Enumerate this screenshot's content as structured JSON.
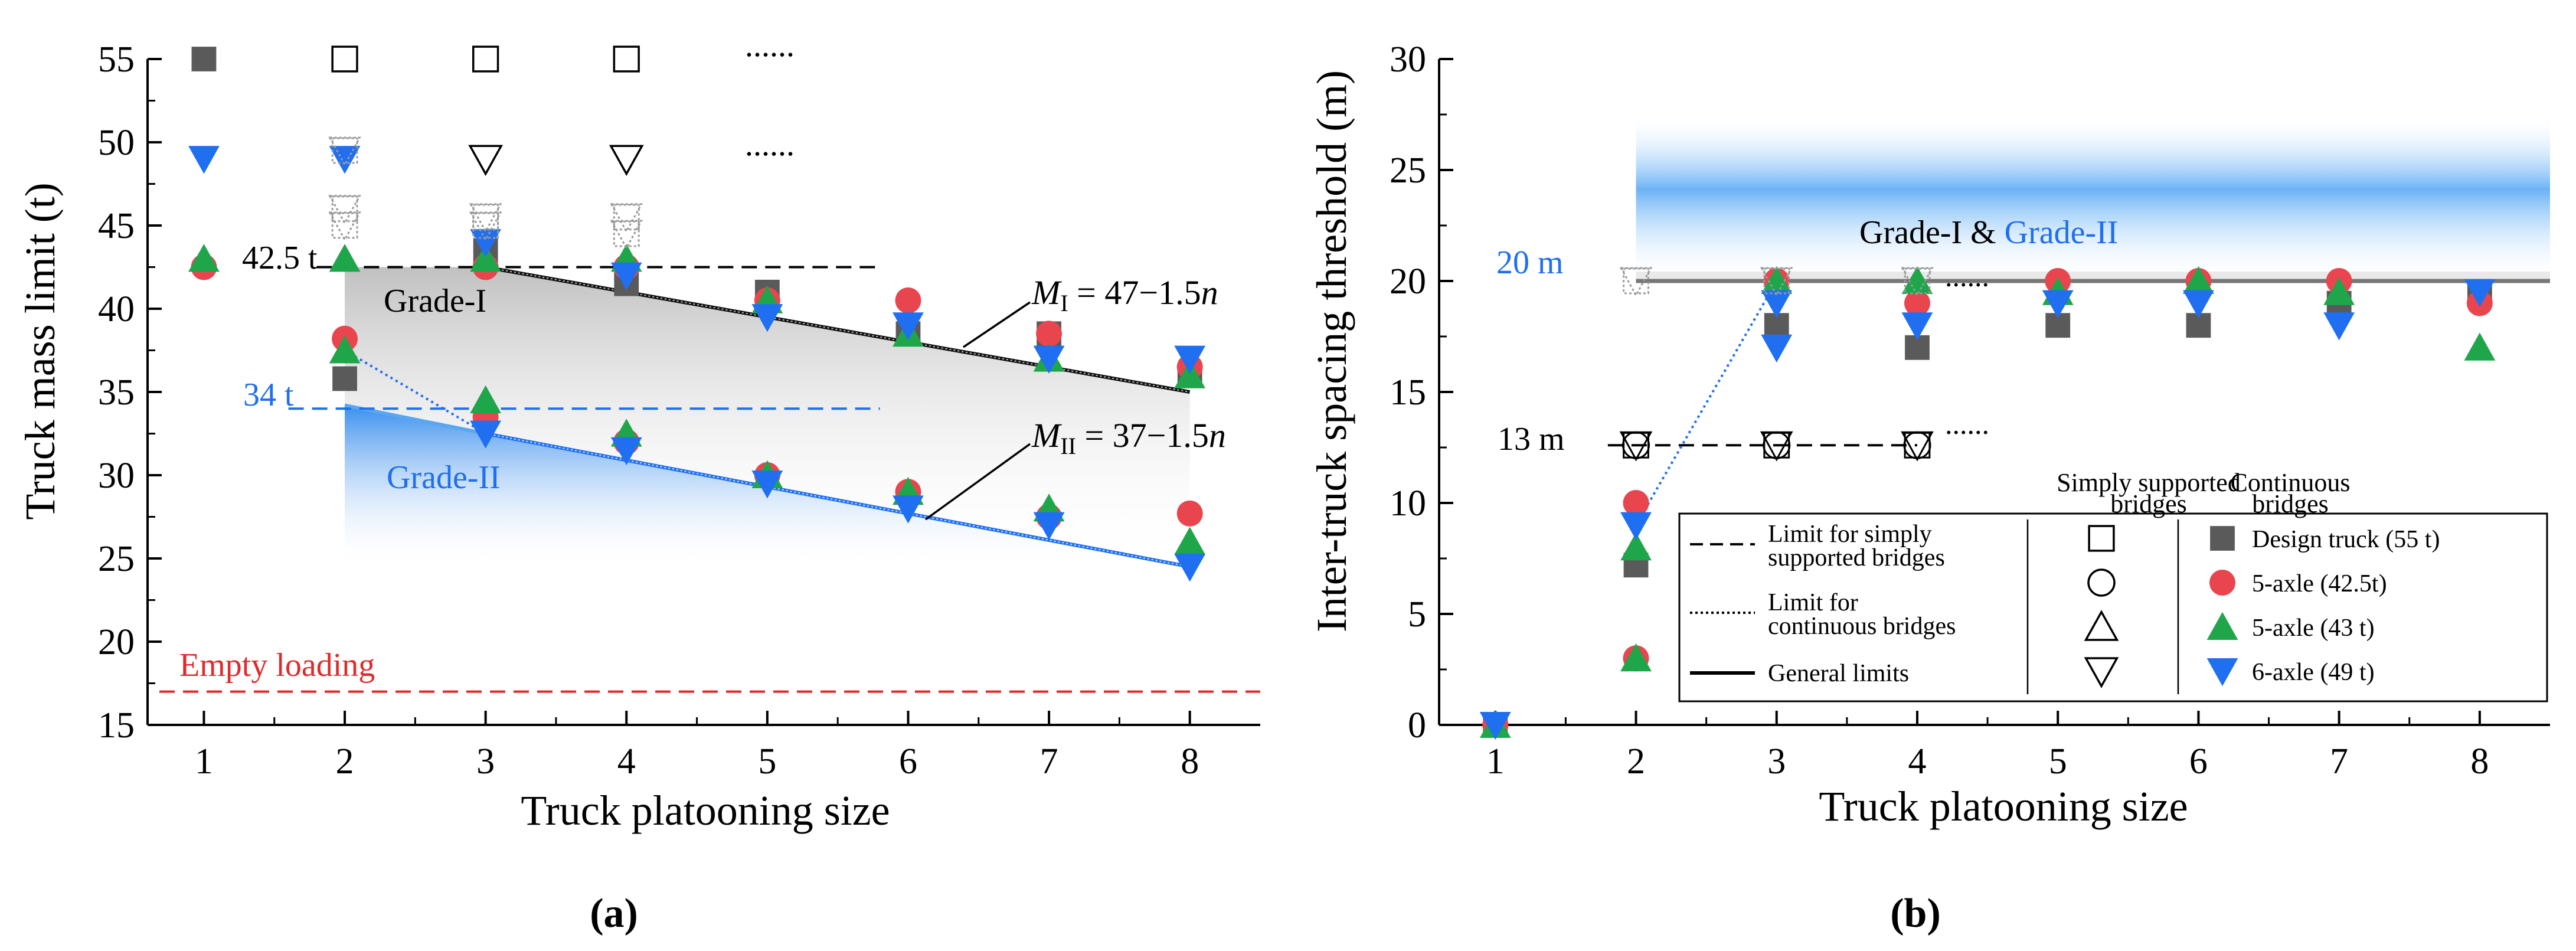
{
  "chart_data": [
    {
      "panel": "(a)",
      "type": "scatter",
      "xlabel": "Truck platooning size",
      "ylabel": "Truck mass limit (t)",
      "xlim": [
        0.6,
        8.5
      ],
      "ylim": [
        15,
        55
      ],
      "xticks": [
        "1",
        "2",
        "3",
        "4",
        "5",
        "6",
        "7",
        "8"
      ],
      "yticks": [
        "15",
        "20",
        "25",
        "30",
        "35",
        "40",
        "45",
        "50",
        "55"
      ],
      "annotations": {
        "grade1_value": "42.5 t",
        "grade2_value": "34 t",
        "grade1_label": "Grade-I",
        "grade2_label": "Grade-II",
        "empty_label": "Empty loading",
        "formula1_M": "M",
        "formula1_sub": "I",
        "formula1_rhs": " = 47−1.5",
        "formula1_n": "n",
        "formula2_M": "M",
        "formula2_sub": "II",
        "formula2_rhs": " = 37−1.5",
        "formula2_n": "n",
        "ellipsis": "......"
      },
      "lines": {
        "grade1_limit": {
          "y": 42.5,
          "x": [
            1.8,
            5.8
          ]
        },
        "grade2_limit": {
          "y": 34,
          "x": [
            1.6,
            5.8
          ]
        },
        "empty_loading": {
          "y": 17
        },
        "M1": {
          "x": [
            3,
            8
          ],
          "y": [
            42.5,
            35
          ]
        },
        "M2": {
          "x": [
            3,
            8
          ],
          "y": [
            32.5,
            24.5
          ]
        },
        "grade2_connector": {
          "x": [
            2,
            3
          ],
          "y": [
            37.5,
            32.5
          ]
        }
      },
      "series": [
        {
          "name": "Design truck (55 t)",
          "marker": "square-filled",
          "color": "#5a5a5a",
          "points": [
            [
              1,
              55
            ],
            [
              2,
              35.8
            ],
            [
              3,
              43.5
            ],
            [
              4,
              41.5
            ],
            [
              5,
              41
            ],
            [
              6,
              38.5
            ],
            [
              7,
              38.5
            ],
            [
              8,
              36
            ]
          ]
        },
        {
          "name": "5-axle (42.5t)",
          "marker": "circle-filled",
          "color": "#e8454f",
          "points": [
            [
              1,
              42.5
            ],
            [
              2,
              38.2
            ],
            [
              3,
              42.5
            ],
            [
              4,
              42.5
            ],
            [
              5,
              40.5
            ],
            [
              6,
              40.5
            ],
            [
              7,
              38.5
            ],
            [
              8,
              36.5
            ],
            [
              3,
              33.5
            ],
            [
              4,
              32
            ],
            [
              5,
              30
            ],
            [
              6,
              29
            ],
            [
              7,
              27.5
            ],
            [
              8,
              27.7
            ]
          ]
        },
        {
          "name": "5-axle (43 t)",
          "marker": "triangle-filled",
          "color": "#1fa64a",
          "points": [
            [
              1,
              43
            ],
            [
              2,
              43
            ],
            [
              3,
              43
            ],
            [
              4,
              43
            ],
            [
              5,
              40.5
            ],
            [
              6,
              38.5
            ],
            [
              7,
              37
            ],
            [
              8,
              36
            ],
            [
              2,
              37.5
            ],
            [
              3,
              34.5
            ],
            [
              4,
              32.5
            ],
            [
              5,
              30
            ],
            [
              6,
              29
            ],
            [
              7,
              28
            ],
            [
              8,
              26
            ]
          ]
        },
        {
          "name": "6-axle (49 t)",
          "marker": "triangle-down-filled",
          "color": "#1f6ff0",
          "points": [
            [
              1,
              49
            ],
            [
              2,
              49
            ],
            [
              3,
              44
            ],
            [
              4,
              42
            ],
            [
              5,
              39.5
            ],
            [
              6,
              39
            ],
            [
              7,
              37
            ],
            [
              8,
              37
            ],
            [
              3,
              32.5
            ],
            [
              4,
              31.5
            ],
            [
              5,
              29.5
            ],
            [
              6,
              28
            ],
            [
              7,
              27
            ],
            [
              8,
              24.5
            ]
          ]
        },
        {
          "name": "Simply supported (open square)",
          "marker": "square-open",
          "color": "#000000",
          "points": [
            [
              2,
              55
            ],
            [
              3,
              55
            ],
            [
              4,
              55
            ]
          ]
        },
        {
          "name": "Simply supported (open triangle-down)",
          "marker": "triangle-down-open",
          "color": "#000000",
          "points": [
            [
              3,
              49
            ],
            [
              4,
              49
            ]
          ]
        },
        {
          "name": "Continuous (dotted)",
          "marker": "dotted-faint",
          "color": "#9a9a9a",
          "points": [
            [
              2,
              49.5
            ],
            [
              2,
              46
            ],
            [
              2,
              45
            ],
            [
              3,
              45.5
            ],
            [
              3,
              45
            ],
            [
              4,
              45.5
            ],
            [
              4,
              44.5
            ]
          ]
        }
      ]
    },
    {
      "panel": "(b)",
      "type": "scatter",
      "xlabel": "Truck platooning size",
      "ylabel": "Inter-truck spacing threshold (m)",
      "xlim": [
        0.6,
        8.5
      ],
      "ylim": [
        0,
        30
      ],
      "xticks": [
        "1",
        "2",
        "3",
        "4",
        "5",
        "6",
        "7",
        "8"
      ],
      "yticks": [
        "0",
        "5",
        "10",
        "15",
        "20",
        "25",
        "30"
      ],
      "annotations": {
        "grade_label_1": "Grade-I",
        "grade_label_amp": " & ",
        "grade_label_2": "Grade-II",
        "limit_20": "20 m",
        "limit_13": "13 m",
        "ellipsis": "......"
      },
      "lines": {
        "general_limit": {
          "y": 20,
          "x": [
            2,
            8.5
          ]
        },
        "simply_limit": {
          "y": 12.6,
          "x": [
            1.8,
            4
          ]
        },
        "band": {
          "y": [
            20,
            27.5
          ],
          "x": [
            2,
            8.5
          ]
        },
        "connector": {
          "x": [
            2,
            3
          ],
          "y": [
            9,
            20
          ]
        }
      },
      "series": [
        {
          "name": "Design truck (55 t)",
          "marker": "square-filled",
          "color": "#5a5a5a",
          "points": [
            [
              1,
              0
            ],
            [
              2,
              7.2
            ],
            [
              3,
              18
            ],
            [
              4,
              17
            ],
            [
              5,
              18
            ],
            [
              6,
              18
            ],
            [
              7,
              19
            ],
            [
              8,
              19.5
            ]
          ]
        },
        {
          "name": "5-axle (42.5t)",
          "marker": "circle-filled",
          "color": "#e8454f",
          "points": [
            [
              1,
              0
            ],
            [
              2,
              10
            ],
            [
              2,
              3
            ],
            [
              3,
              20
            ],
            [
              4,
              19
            ],
            [
              5,
              20
            ],
            [
              6,
              20
            ],
            [
              7,
              20
            ],
            [
              8,
              19
            ]
          ]
        },
        {
          "name": "5-axle (43 t)",
          "marker": "triangle-filled",
          "color": "#1fa64a",
          "points": [
            [
              1,
              0
            ],
            [
              2,
              8
            ],
            [
              2,
              3
            ],
            [
              3,
              20
            ],
            [
              4,
              20
            ],
            [
              5,
              19.5
            ],
            [
              6,
              20
            ],
            [
              7,
              19.5
            ],
            [
              8,
              17
            ]
          ]
        },
        {
          "name": "6-axle (49 t)",
          "marker": "triangle-down-filled",
          "color": "#1f6ff0",
          "points": [
            [
              1,
              0
            ],
            [
              2,
              9
            ],
            [
              3,
              19
            ],
            [
              3,
              17
            ],
            [
              4,
              18
            ],
            [
              5,
              19
            ],
            [
              6,
              19
            ],
            [
              7,
              18
            ],
            [
              8,
              19.5
            ]
          ]
        },
        {
          "name": "Simply supported (open)",
          "marker": "mixed-open",
          "color": "#000000",
          "points": [
            [
              2,
              12.6
            ],
            [
              3,
              12.6
            ],
            [
              4,
              12.6
            ]
          ]
        },
        {
          "name": "Continuous (dotted)",
          "marker": "dotted-faint",
          "color": "#9a9a9a",
          "points": [
            [
              2,
              20
            ],
            [
              3,
              20
            ],
            [
              4,
              20
            ]
          ]
        }
      ],
      "legend": {
        "placement": "bottom-right",
        "col_simply": "Simply supported bridges",
        "col_continuous": "Continuous bridges",
        "col_simply_1": "Simply supported",
        "col_simply_2": "bridges",
        "col_cont_1": "Continuous",
        "col_cont_2": "bridges",
        "line_items": [
          {
            "label_1": "Limit for simply",
            "label_2": "supported bridges",
            "style": "dashed"
          },
          {
            "label_1": "Limit for",
            "label_2": "continuous bridges",
            "style": "dotted"
          },
          {
            "label_1": "General limits",
            "label_2": "",
            "style": "solid"
          }
        ],
        "marker_items": [
          {
            "open": "square",
            "filled": "square",
            "color": "#5a5a5a",
            "label": "Design truck (55 t)"
          },
          {
            "open": "circle",
            "filled": "circle",
            "color": "#e8454f",
            "label": "5-axle (42.5t)"
          },
          {
            "open": "triangle",
            "filled": "triangle",
            "color": "#1fa64a",
            "label": "5-axle (43 t)"
          },
          {
            "open": "triangle-down",
            "filled": "triangle-down",
            "color": "#1f6ff0",
            "label": "6-axle (49 t)"
          }
        ]
      }
    }
  ],
  "captions": {
    "a": "(a)",
    "b": "(b)"
  },
  "colors": {
    "grade1_black": "#000000",
    "grade2_blue": "#1f6ff0",
    "empty_red": "#e02a2a",
    "fill_gray": "#c8c8c8",
    "fill_blue": "#2f8af0"
  }
}
